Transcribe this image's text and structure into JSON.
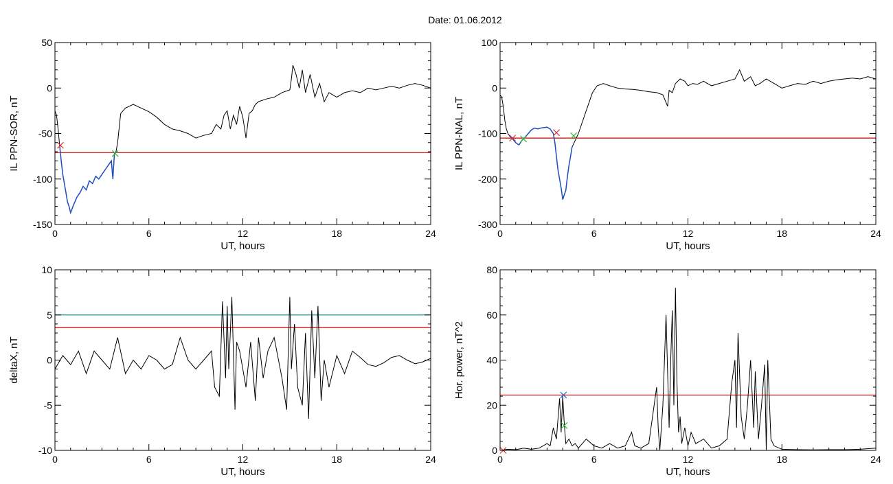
{
  "title": "Date:  01.06.2012",
  "colors": {
    "trace": "#000000",
    "highlight": "#1f4fbf",
    "threshold_red": "#cc0000",
    "threshold_teal": "#1f8f8f",
    "marker_red": "#e03030",
    "marker_green": "#33bb33",
    "marker_blue": "#2266cc"
  },
  "chart_data": [
    {
      "id": "sor",
      "type": "line",
      "xlabel": "UT, hours",
      "ylabel": "IL PPN-SOR, nT",
      "xlim": [
        0,
        24
      ],
      "ylim": [
        -150,
        50
      ],
      "xticks": [
        0,
        6,
        12,
        18,
        24
      ],
      "yticks": [
        -150,
        -100,
        -50,
        0,
        50
      ],
      "x": [
        0,
        0.1,
        0.2,
        0.3,
        0.4,
        0.5,
        0.6,
        0.7,
        0.8,
        0.9,
        1.0,
        1.2,
        1.4,
        1.6,
        1.8,
        2.0,
        2.2,
        2.4,
        2.6,
        2.8,
        3.0,
        3.2,
        3.4,
        3.6,
        3.7,
        3.8,
        3.9,
        4.0,
        4.2,
        4.5,
        5.0,
        5.5,
        6.0,
        6.5,
        7.0,
        7.5,
        8.0,
        8.5,
        9.0,
        9.5,
        10.0,
        10.3,
        10.6,
        10.8,
        11.0,
        11.2,
        11.4,
        11.6,
        11.8,
        12.0,
        12.2,
        12.4,
        12.6,
        12.8,
        13.0,
        13.5,
        14.0,
        14.5,
        15.0,
        15.1,
        15.2,
        15.4,
        15.6,
        15.8,
        16.0,
        16.3,
        16.6,
        16.9,
        17.2,
        17.5,
        18.0,
        18.5,
        19.0,
        19.5,
        20.0,
        20.5,
        21.0,
        21.5,
        22.0,
        22.5,
        23.0,
        23.5,
        24.0
      ],
      "y": [
        -25,
        -30,
        -45,
        -63,
        -80,
        -95,
        -105,
        -115,
        -125,
        -130,
        -137,
        -128,
        -120,
        -115,
        -108,
        -112,
        -102,
        -105,
        -97,
        -100,
        -95,
        -90,
        -85,
        -80,
        -100,
        -72,
        -70,
        -60,
        -28,
        -22,
        -18,
        -22,
        -26,
        -32,
        -40,
        -45,
        -47,
        -50,
        -55,
        -52,
        -50,
        -40,
        -45,
        -30,
        -25,
        -45,
        -30,
        -40,
        -20,
        -32,
        -55,
        -28,
        -25,
        -18,
        -15,
        -12,
        -10,
        -5,
        -2,
        10,
        25,
        15,
        0,
        20,
        -5,
        15,
        -10,
        5,
        -15,
        -5,
        -10,
        -5,
        -3,
        -5,
        0,
        -2,
        0,
        2,
        0,
        3,
        5,
        3,
        0
      ],
      "highlight_range": [
        0.3,
        3.9
      ],
      "thresholds": [
        {
          "value": -71,
          "color": "red"
        }
      ],
      "markers": [
        {
          "x": 0.35,
          "y": -63,
          "color": "red"
        },
        {
          "x": 3.85,
          "y": -72,
          "color": "green"
        }
      ]
    },
    {
      "id": "nal",
      "type": "line",
      "xlabel": "UT, hours",
      "ylabel": "IL PPN-NAL, nT",
      "xlim": [
        0,
        24
      ],
      "ylim": [
        -300,
        100
      ],
      "xticks": [
        0,
        6,
        12,
        18,
        24
      ],
      "yticks": [
        -300,
        -200,
        -100,
        0,
        100
      ],
      "x": [
        0,
        0.1,
        0.2,
        0.3,
        0.4,
        0.5,
        0.6,
        0.8,
        1.0,
        1.2,
        1.4,
        1.6,
        1.8,
        2.0,
        2.2,
        2.4,
        2.6,
        2.8,
        3.0,
        3.2,
        3.4,
        3.5,
        3.6,
        3.7,
        3.8,
        3.9,
        4.0,
        4.1,
        4.2,
        4.3,
        4.4,
        4.5,
        4.6,
        4.8,
        5.0,
        5.3,
        5.6,
        5.9,
        6.2,
        6.6,
        7.0,
        7.5,
        8.0,
        8.5,
        9.0,
        9.5,
        10.0,
        10.4,
        10.7,
        10.8,
        11.0,
        11.2,
        11.5,
        11.8,
        12.0,
        12.3,
        12.6,
        13.0,
        13.5,
        14.0,
        14.5,
        15.0,
        15.3,
        15.6,
        16.0,
        16.3,
        16.6,
        17.0,
        17.5,
        18.0,
        18.5,
        19.0,
        19.5,
        20.0,
        20.5,
        21.0,
        21.5,
        22.0,
        22.5,
        23.0,
        23.5,
        24.0
      ],
      "y": [
        -15,
        -20,
        -40,
        -70,
        -90,
        -100,
        -105,
        -112,
        -120,
        -125,
        -115,
        -108,
        -100,
        -92,
        -88,
        -90,
        -88,
        -87,
        -86,
        -90,
        -100,
        -120,
        -150,
        -180,
        -200,
        -220,
        -245,
        -235,
        -225,
        -195,
        -170,
        -150,
        -130,
        -115,
        -100,
        -70,
        -40,
        -10,
        5,
        10,
        5,
        0,
        -2,
        -3,
        -5,
        -8,
        -10,
        -15,
        -40,
        -5,
        -10,
        10,
        20,
        15,
        5,
        10,
        8,
        15,
        5,
        10,
        15,
        20,
        40,
        15,
        25,
        5,
        10,
        20,
        10,
        0,
        5,
        10,
        8,
        15,
        10,
        15,
        18,
        20,
        22,
        20,
        25,
        20
      ],
      "highlight_range": [
        0.6,
        4.7
      ],
      "thresholds": [
        {
          "value": -110,
          "color": "red"
        }
      ],
      "markers": [
        {
          "x": 0.8,
          "y": -110,
          "color": "red"
        },
        {
          "x": 1.5,
          "y": -112,
          "color": "green"
        },
        {
          "x": 3.6,
          "y": -98,
          "color": "red"
        },
        {
          "x": 4.7,
          "y": -105,
          "color": "green"
        }
      ]
    },
    {
      "id": "deltax",
      "type": "line",
      "xlabel": "UT, hours",
      "ylabel": "deltaX, nT",
      "xlim": [
        0,
        24
      ],
      "ylim": [
        -10,
        10
      ],
      "xticks": [
        0,
        6,
        12,
        18,
        24
      ],
      "yticks": [
        -10,
        -5,
        0,
        5,
        10
      ],
      "x": [
        0,
        0.5,
        1.0,
        1.5,
        2.0,
        2.5,
        3.0,
        3.5,
        4.0,
        4.5,
        5.0,
        5.5,
        6.0,
        6.5,
        7.0,
        7.5,
        8.0,
        8.5,
        9.0,
        9.5,
        10.0,
        10.2,
        10.5,
        10.7,
        10.9,
        11.0,
        11.1,
        11.3,
        11.5,
        11.6,
        11.8,
        12.0,
        12.2,
        12.5,
        12.8,
        13.0,
        13.3,
        13.6,
        14.0,
        14.5,
        14.8,
        15.0,
        15.1,
        15.3,
        15.5,
        15.8,
        16.0,
        16.2,
        16.4,
        16.6,
        16.8,
        17.0,
        17.2,
        17.5,
        18.0,
        18.5,
        19.0,
        19.5,
        20.0,
        20.5,
        21.0,
        21.5,
        22.0,
        22.5,
        23.0,
        23.5,
        24.0
      ],
      "y": [
        -1,
        0.5,
        -0.5,
        1,
        -1.5,
        1,
        0,
        -1,
        2.5,
        -1.5,
        0,
        -1,
        0.5,
        0,
        -1,
        -0.5,
        2.5,
        0,
        -1,
        0,
        1,
        -3,
        -4,
        6.5,
        -2,
        6,
        -1,
        7,
        -5.5,
        2,
        1,
        -1,
        -3,
        2,
        -4.5,
        2.5,
        -2,
        1,
        2.5,
        -2,
        -5.5,
        7,
        -1,
        4,
        -3,
        -5,
        3,
        -6.5,
        5.5,
        -2,
        6,
        -4.5,
        0,
        -3,
        0.5,
        -1.5,
        1.0,
        0.3,
        -0.5,
        -0.7,
        -0.3,
        0.3,
        0.5,
        0,
        -0.4,
        -0.2,
        0.2
      ],
      "thresholds": [
        {
          "value": 5,
          "color": "teal"
        },
        {
          "value": 3.6,
          "color": "red"
        }
      ]
    },
    {
      "id": "power",
      "type": "line",
      "xlabel": "UT, hours",
      "ylabel": "Hor. power, nT^2",
      "xlim": [
        0,
        24
      ],
      "ylim": [
        0,
        80
      ],
      "xticks": [
        0,
        6,
        12,
        18,
        24
      ],
      "yticks": [
        0,
        20,
        40,
        60,
        80
      ],
      "x": [
        0,
        0.5,
        1.0,
        1.5,
        2.0,
        2.5,
        3.0,
        3.2,
        3.4,
        3.6,
        3.8,
        3.9,
        4.0,
        4.1,
        4.2,
        4.4,
        4.6,
        4.8,
        5.0,
        5.5,
        6.0,
        6.5,
        7.0,
        7.5,
        8.0,
        8.4,
        8.6,
        9.0,
        9.5,
        10.0,
        10.1,
        10.2,
        10.4,
        10.6,
        10.8,
        10.9,
        11.0,
        11.1,
        11.2,
        11.3,
        11.4,
        11.5,
        11.6,
        11.8,
        12.0,
        12.2,
        12.5,
        13.0,
        13.5,
        14.0,
        14.5,
        14.8,
        15.0,
        15.1,
        15.2,
        15.4,
        15.6,
        15.8,
        16.0,
        16.2,
        16.3,
        16.5,
        16.7,
        16.9,
        17.0,
        17.1,
        17.3,
        17.5,
        18.0,
        19.0,
        20.0,
        21.0,
        22.0,
        23.0,
        24.0
      ],
      "y": [
        0,
        0.5,
        0.3,
        1,
        0.5,
        1,
        3,
        2,
        10,
        5,
        23,
        8,
        24,
        12,
        3,
        5,
        2,
        3,
        1,
        5,
        2,
        1,
        3,
        1,
        2,
        8,
        2,
        1,
        3,
        28,
        10,
        0,
        20,
        60,
        10,
        40,
        62,
        20,
        72,
        30,
        8,
        15,
        3,
        10,
        2,
        8,
        3,
        5,
        1,
        2,
        5,
        30,
        40,
        10,
        52,
        15,
        5,
        20,
        40,
        10,
        35,
        5,
        20,
        38,
        0,
        40,
        5,
        2,
        0.5,
        0.3,
        0.2,
        0.3,
        0.3,
        0.5,
        1
      ],
      "thresholds": [
        {
          "value": 24.5,
          "color": "red"
        }
      ],
      "markers": [
        {
          "x": 4.05,
          "y": 24.5,
          "color": "blue"
        },
        {
          "x": 4.1,
          "y": 11,
          "color": "green"
        },
        {
          "x": 0.2,
          "y": 0,
          "color": "red"
        }
      ]
    }
  ]
}
